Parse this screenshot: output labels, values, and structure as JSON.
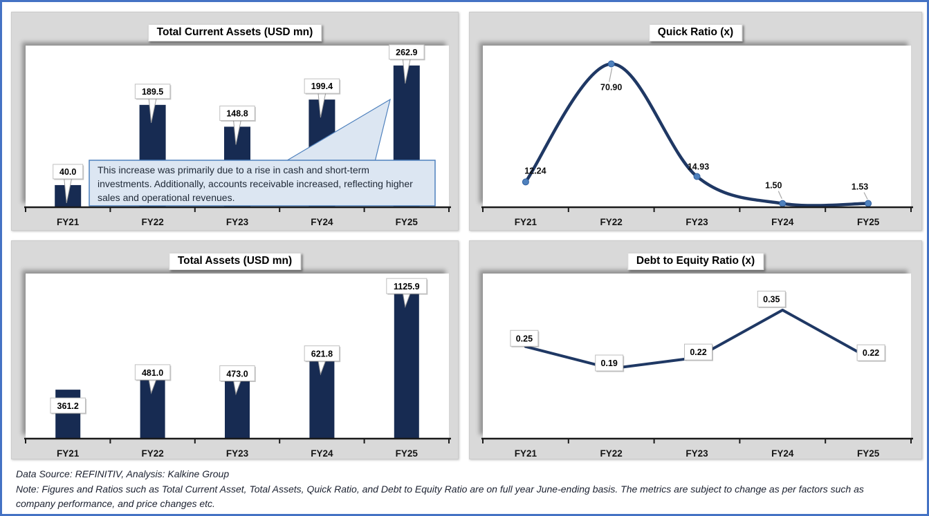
{
  "page": {
    "border_color": "#4472C4",
    "panel_bg": "#D9D9D9",
    "colors": {
      "bar": "#172B52",
      "line": "#1F3864",
      "marker": "#4F81BD",
      "annotation_fill": "#DCE6F2",
      "annotation_border": "#4F81BD"
    }
  },
  "chart_data": [
    {
      "id": "total-current-assets",
      "type": "bar",
      "title": "Total Current Assets (USD mn)",
      "categories": [
        "FY21",
        "FY22",
        "FY23",
        "FY24",
        "FY25"
      ],
      "values": [
        40.0,
        189.5,
        148.8,
        199.4,
        262.9
      ],
      "labels": [
        "40.0",
        "189.5",
        "148.8",
        "199.4",
        "262.9"
      ],
      "ylim": [
        0,
        300
      ],
      "grid": false,
      "legend": "none",
      "label_style": "callout-box",
      "annotation": {
        "text": "This increase was primarily due to a rise in cash and short-term investments. Additionally, accounts receivable increased, reflecting higher sales and operational revenues.",
        "points_to": "FY25"
      }
    },
    {
      "id": "quick-ratio",
      "type": "line",
      "smooth": true,
      "markers": true,
      "title": "Quick Ratio (x)",
      "categories": [
        "FY21",
        "FY22",
        "FY23",
        "FY24",
        "FY25"
      ],
      "values": [
        12.24,
        70.9,
        14.93,
        1.5,
        1.53
      ],
      "labels": [
        "12.24",
        "70.90",
        "14.93",
        "1.50",
        "1.53"
      ],
      "label_positions": [
        "above-right",
        "below",
        "above",
        "above-left",
        "above-left"
      ],
      "ylim": [
        0,
        80
      ],
      "grid": false,
      "legend": "none",
      "label_style": "plain"
    },
    {
      "id": "total-assets",
      "type": "bar",
      "title": "Total Assets (USD mn)",
      "categories": [
        "FY21",
        "FY22",
        "FY23",
        "FY24",
        "FY25"
      ],
      "values": [
        361.2,
        481.0,
        473.0,
        621.8,
        1125.9
      ],
      "labels": [
        "361.2",
        "481.0",
        "473.0",
        "621.8",
        "1125.9"
      ],
      "label_positions": [
        "inside",
        "overlap",
        "overlap",
        "overlap",
        "overlap"
      ],
      "ylim": [
        0,
        1230
      ],
      "grid": false,
      "legend": "none",
      "label_style": "callout-box"
    },
    {
      "id": "debt-to-equity",
      "type": "line",
      "smooth": false,
      "markers": false,
      "title": "Debt to Equity Ratio (x)",
      "categories": [
        "FY21",
        "FY22",
        "FY23",
        "FY24",
        "FY25"
      ],
      "values": [
        0.25,
        0.19,
        0.22,
        0.35,
        0.22
      ],
      "labels": [
        "0.25",
        "0.19",
        "0.22",
        "0.35",
        "0.22"
      ],
      "label_positions": [
        "left",
        "below",
        "above",
        "above-left",
        "right"
      ],
      "ylim": [
        0,
        0.45
      ],
      "grid": false,
      "legend": "none",
      "label_style": "box"
    }
  ],
  "footer": {
    "source_line": "Data Source: REFINITIV, Analysis: Kalkine Group",
    "note_line": "Note: Figures and Ratios such as Total Current Asset, Total Assets, Quick Ratio, and  Debt to Equity Ratio are on full year June-ending basis. The metrics are subject to change as per factors such as company performance, and price changes etc."
  }
}
